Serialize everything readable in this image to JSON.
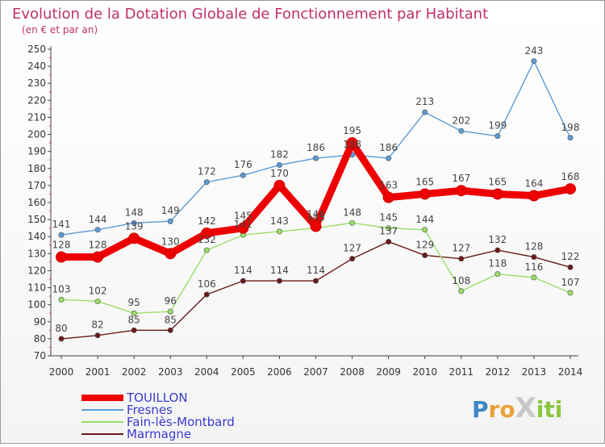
{
  "chart_data": {
    "type": "line",
    "title": "Evolution de la Dotation Globale de Fonctionnement par Habitant",
    "subtitle": "(en € et par an)",
    "x": [
      "2000",
      "2001",
      "2002",
      "2003",
      "2004",
      "2005",
      "2006",
      "2007",
      "2008",
      "2009",
      "2010",
      "2011",
      "2012",
      "2013",
      "2014"
    ],
    "ylim": [
      70,
      250
    ],
    "ytick_step": 10,
    "grid": false,
    "legend_position": "bottom-left",
    "series": [
      {
        "name": "TOUILLON",
        "color": "#ee0000",
        "values": [
          128,
          128,
          139,
          130,
          142,
          145,
          170,
          146,
          195,
          163,
          165,
          167,
          165,
          164,
          168
        ]
      },
      {
        "name": "Fresnes",
        "color": "#5b9bd5",
        "values": [
          141,
          144,
          148,
          149,
          172,
          176,
          182,
          186,
          188,
          186,
          213,
          202,
          199,
          243,
          198
        ]
      },
      {
        "name": "Fain-lès-Montbard",
        "color": "#99dd66",
        "values": [
          103,
          102,
          95,
          96,
          132,
          141,
          143,
          145,
          148,
          145,
          144,
          108,
          118,
          116,
          107
        ]
      },
      {
        "name": "Marmagne",
        "color": "#6b1a1a",
        "values": [
          80,
          82,
          85,
          85,
          106,
          114,
          114,
          114,
          127,
          137,
          129,
          127,
          132,
          128,
          122
        ]
      }
    ]
  },
  "brand": "Proxiti"
}
